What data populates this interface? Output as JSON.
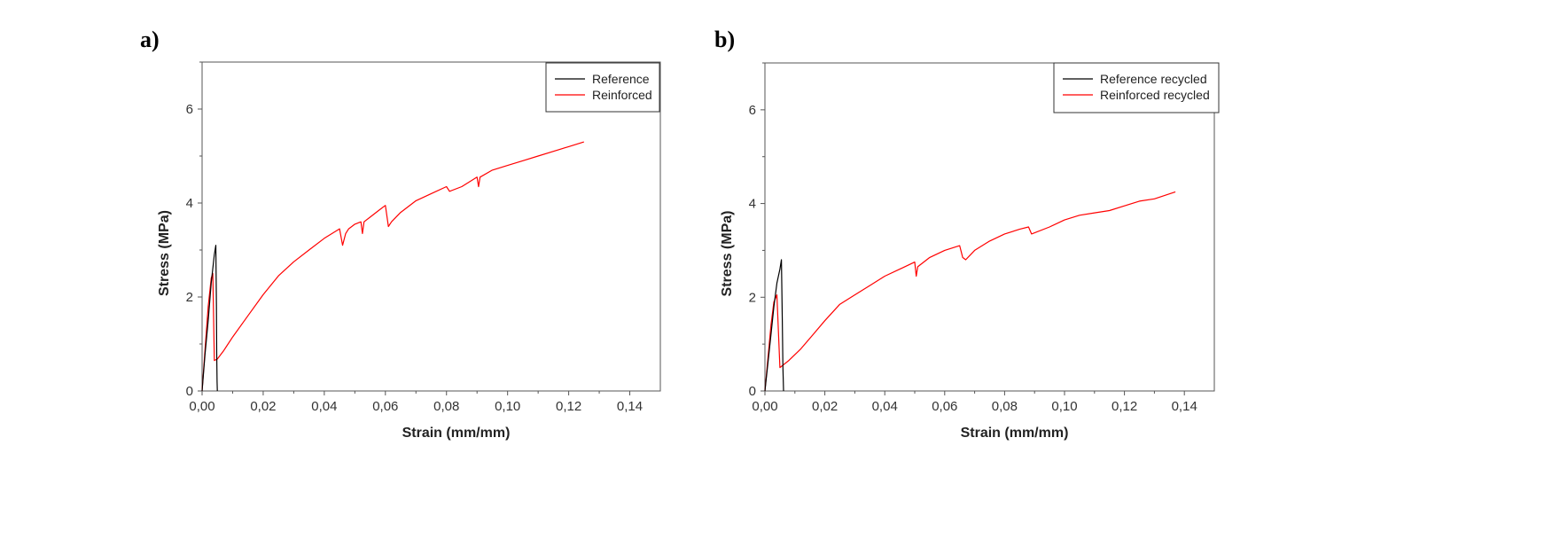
{
  "chart_data": [
    {
      "panel_label": "a)",
      "type": "line",
      "xlabel": "Strain (mm/mm)",
      "ylabel": "Stress (MPa)",
      "xlim": [
        0,
        0.15
      ],
      "ylim": [
        0,
        7
      ],
      "xticks": [
        "0,00",
        "0,02",
        "0,04",
        "0,06",
        "0,08",
        "0,10",
        "0,12",
        "0,14"
      ],
      "xtick_values": [
        0,
        0.02,
        0.04,
        0.06,
        0.08,
        0.1,
        0.12,
        0.14
      ],
      "yticks": [
        "0",
        "2",
        "4",
        "6"
      ],
      "ytick_values": [
        0,
        2,
        4,
        6
      ],
      "grid": false,
      "legend_position": "top-right",
      "series": [
        {
          "name": "Reference",
          "color": "#000000",
          "x": [
            0,
            0.001,
            0.002,
            0.003,
            0.004,
            0.0045,
            0.0047,
            0.0048,
            0.0049,
            0.005
          ],
          "y": [
            0,
            0.8,
            1.5,
            2.3,
            2.9,
            3.1,
            1.8,
            0.8,
            0.2,
            0
          ]
        },
        {
          "name": "Reinforced",
          "color": "#ff0000",
          "x": [
            0,
            0.001,
            0.002,
            0.003,
            0.0035,
            0.004,
            0.005,
            0.007,
            0.01,
            0.015,
            0.02,
            0.025,
            0.03,
            0.035,
            0.04,
            0.045,
            0.046,
            0.047,
            0.048,
            0.05,
            0.052,
            0.0525,
            0.053,
            0.055,
            0.058,
            0.06,
            0.061,
            0.062,
            0.065,
            0.07,
            0.075,
            0.08,
            0.081,
            0.085,
            0.09,
            0.0905,
            0.091,
            0.095,
            0.1,
            0.105,
            0.11,
            0.115,
            0.12,
            0.125
          ],
          "y": [
            0,
            0.9,
            1.8,
            2.4,
            2.5,
            0.65,
            0.68,
            0.85,
            1.15,
            1.6,
            2.05,
            2.45,
            2.75,
            3.0,
            3.25,
            3.45,
            3.1,
            3.35,
            3.45,
            3.55,
            3.6,
            3.35,
            3.6,
            3.7,
            3.85,
            3.95,
            3.5,
            3.6,
            3.8,
            4.05,
            4.2,
            4.35,
            4.25,
            4.35,
            4.55,
            4.35,
            4.55,
            4.7,
            4.8,
            4.9,
            5.0,
            5.1,
            5.2,
            5.3
          ]
        }
      ]
    },
    {
      "panel_label": "b)",
      "type": "line",
      "xlabel": "Strain (mm/mm)",
      "ylabel": "Stress (MPa)",
      "xlim": [
        0,
        0.15
      ],
      "ylim": [
        0,
        7
      ],
      "xticks": [
        "0,00",
        "0,02",
        "0,04",
        "0,06",
        "0,08",
        "0,10",
        "0,12",
        "0,14"
      ],
      "xtick_values": [
        0,
        0.02,
        0.04,
        0.06,
        0.08,
        0.1,
        0.12,
        0.14
      ],
      "yticks": [
        "0",
        "2",
        "4",
        "6"
      ],
      "ytick_values": [
        0,
        2,
        4,
        6
      ],
      "grid": false,
      "legend_position": "top-right",
      "series": [
        {
          "name": "Reference recycled",
          "color": "#000000",
          "x": [
            0,
            0.001,
            0.002,
            0.003,
            0.004,
            0.005,
            0.0055,
            0.0058,
            0.006,
            0.0062
          ],
          "y": [
            0,
            0.6,
            1.2,
            1.8,
            2.3,
            2.6,
            2.8,
            1.5,
            0.5,
            0
          ]
        },
        {
          "name": "Reinforced recycled",
          "color": "#ff0000",
          "x": [
            0,
            0.001,
            0.002,
            0.003,
            0.004,
            0.005,
            0.008,
            0.012,
            0.016,
            0.02,
            0.025,
            0.03,
            0.035,
            0.04,
            0.045,
            0.05,
            0.0505,
            0.051,
            0.055,
            0.06,
            0.065,
            0.066,
            0.067,
            0.07,
            0.075,
            0.08,
            0.085,
            0.088,
            0.089,
            0.095,
            0.1,
            0.105,
            0.11,
            0.115,
            0.12,
            0.125,
            0.13,
            0.137
          ],
          "y": [
            0,
            0.7,
            1.4,
            1.9,
            2.05,
            0.5,
            0.65,
            0.9,
            1.2,
            1.5,
            1.85,
            2.05,
            2.25,
            2.45,
            2.6,
            2.75,
            2.45,
            2.65,
            2.85,
            3.0,
            3.1,
            2.85,
            2.8,
            3.0,
            3.2,
            3.35,
            3.45,
            3.5,
            3.35,
            3.5,
            3.65,
            3.75,
            3.8,
            3.85,
            3.95,
            4.05,
            4.1,
            4.25
          ]
        }
      ]
    }
  ]
}
